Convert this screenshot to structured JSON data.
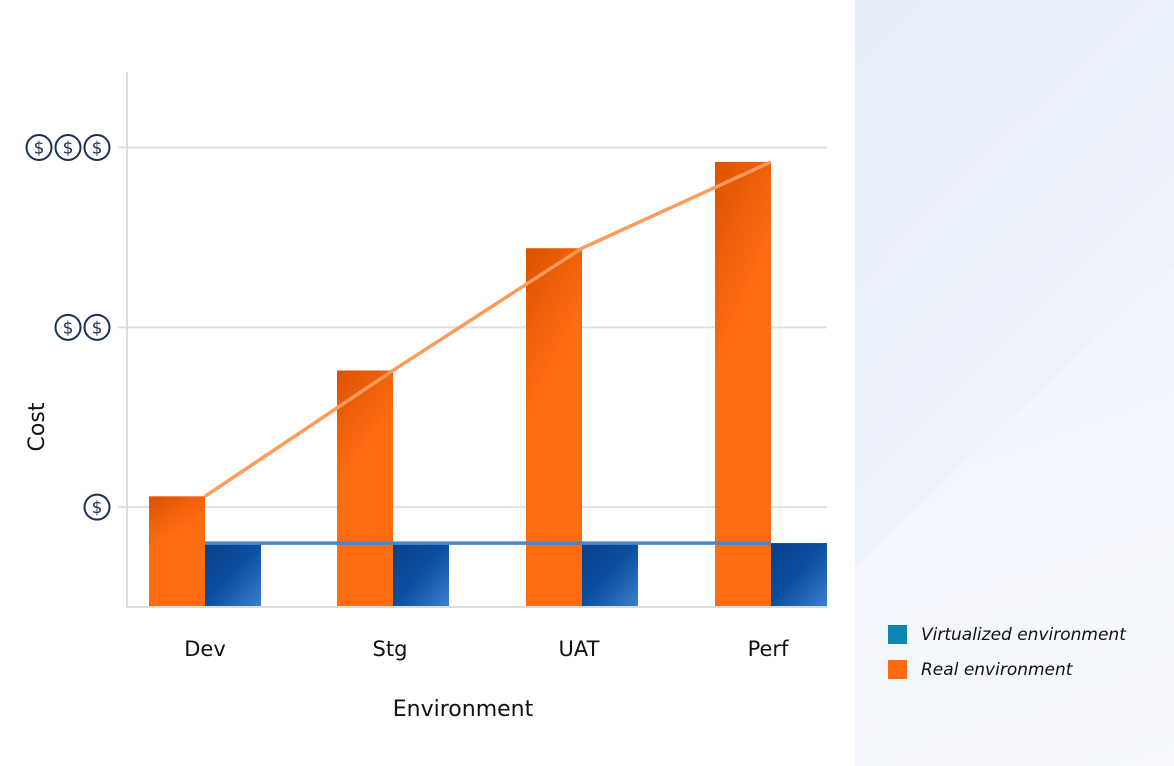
{
  "chart_data": {
    "type": "bar",
    "xlabel": "Environment",
    "ylabel": "Cost",
    "categories": [
      "Dev",
      "Stg",
      "UAT",
      "Perf"
    ],
    "yticks": [
      {
        "value": 1,
        "label": "$"
      },
      {
        "value": 2,
        "label": "$$"
      },
      {
        "value": 3,
        "label": "$$$"
      }
    ],
    "ylim": [
      0.45,
      3.42
    ],
    "grid": true,
    "legend_position": "bottom-right",
    "series": [
      {
        "name": "Virtualized environment",
        "color": "#0a86b0",
        "values": [
          0.8,
          0.8,
          0.8,
          0.8
        ],
        "trend_line_color": "#4a86c8"
      },
      {
        "name": "Real environment",
        "color": "#fe6a10",
        "values": [
          1.06,
          1.76,
          2.44,
          2.92
        ],
        "trend_line_color": "#ff9a5a"
      }
    ]
  }
}
